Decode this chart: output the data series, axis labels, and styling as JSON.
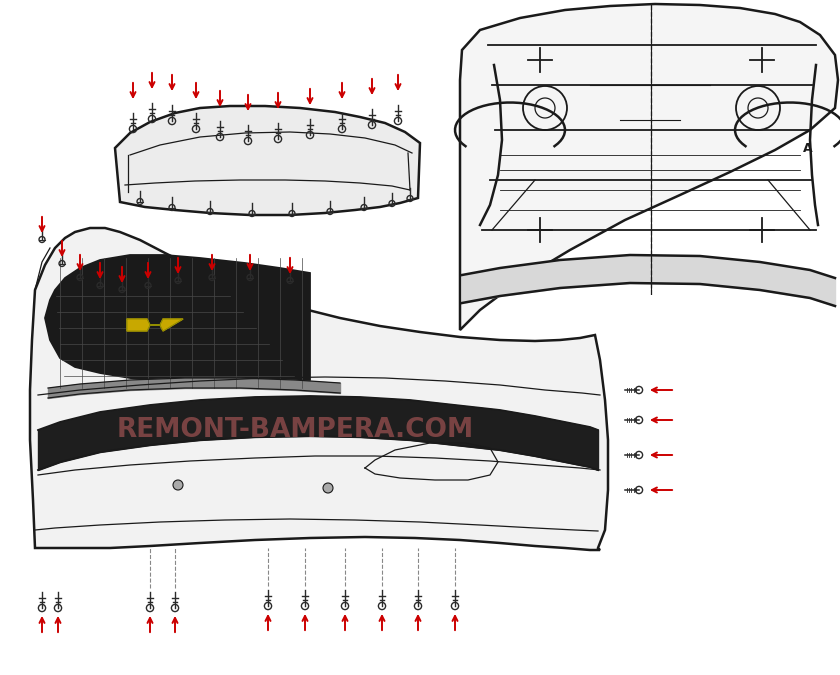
{
  "background_color": "#ffffff",
  "watermark_text": "REMONT-BAMPERA.COM",
  "watermark_color": "#e87070",
  "watermark_alpha": 0.45,
  "arrow_color": "#cc0000",
  "line_color": "#1a1a1a",
  "fastener_color": "#2a2a2a",
  "fig_width": 8.4,
  "fig_height": 6.75,
  "dpi": 100
}
